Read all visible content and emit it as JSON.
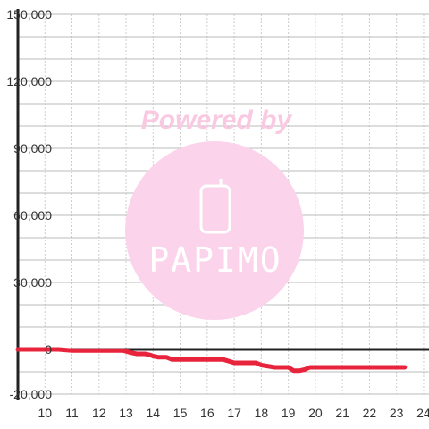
{
  "watermark": {
    "text": "Powered by",
    "logo_text": "PAPIMO",
    "color": "#f9c9e2",
    "circle_color": "#fbd3ea",
    "icon": "phone-icon"
  },
  "colors": {
    "series": "#e8243c",
    "axis": "#222222",
    "grid_major": "#bbbbbb",
    "grid_minor": "#cccccc",
    "label": "#333333"
  },
  "chart_data": {
    "type": "line",
    "title": "",
    "xlabel": "",
    "ylabel": "",
    "xlim": [
      9,
      24.2
    ],
    "ylim": [
      -20000,
      150000
    ],
    "x_ticks": [
      "10",
      "11",
      "12",
      "13",
      "14",
      "15",
      "16",
      "17",
      "18",
      "19",
      "20",
      "21",
      "22",
      "23",
      "24"
    ],
    "y_ticks": [
      "150,000",
      "120,000",
      "90,000",
      "60,000",
      "30,000",
      "0",
      "-20,000"
    ],
    "grid": true,
    "legend": "none",
    "series": [
      {
        "x": [
          9,
          10.5,
          11,
          12,
          12.9,
          13.2,
          13.4,
          13.7,
          13.9,
          14,
          14.2,
          14.5,
          14.7,
          15,
          16,
          16.3,
          16.6,
          17,
          17.5,
          17.8,
          18,
          18.5,
          18.8,
          19,
          19.2,
          19.4,
          19.6,
          19.8,
          20.5,
          21,
          22,
          23.3
        ],
        "y": [
          0,
          0,
          -500,
          -500,
          -500,
          -1500,
          -2000,
          -2000,
          -2500,
          -3000,
          -3500,
          -3500,
          -4500,
          -4500,
          -4500,
          -4500,
          -4500,
          -6000,
          -6000,
          -6000,
          -7000,
          -8000,
          -8000,
          -8000,
          -9500,
          -9500,
          -9000,
          -8000,
          -8000,
          -8000,
          -8000,
          -8000
        ]
      }
    ]
  }
}
